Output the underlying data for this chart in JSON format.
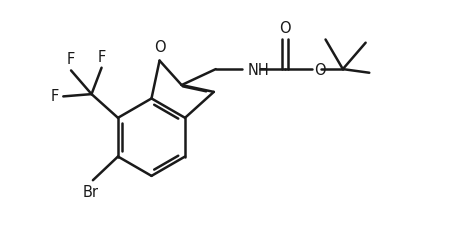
{
  "bg_color": "#ffffff",
  "line_color": "#1a1a1a",
  "line_width": 1.8,
  "font_size": 10.5,
  "figsize": [
    4.67,
    2.47
  ],
  "dpi": 100,
  "xlim": [
    0,
    10
  ],
  "ylim": [
    0,
    5.3
  ]
}
